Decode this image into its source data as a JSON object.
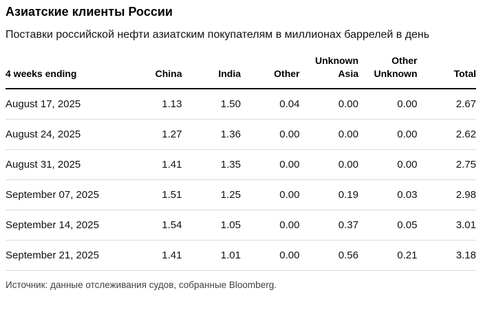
{
  "header": {
    "title": "Азиатские клиенты России",
    "subtitle": "Поставки российской нефти азиатским покупателям в миллионах баррелей в день"
  },
  "table": {
    "columns": [
      "4 weeks ending",
      "China",
      "India",
      "Other",
      "Unknown Asia",
      "Other Unknown",
      "Total"
    ],
    "rows": [
      {
        "date": "August 17, 2025",
        "values": [
          "1.13",
          "1.50",
          "0.04",
          "0.00",
          "0.00",
          "2.67"
        ]
      },
      {
        "date": "August 24, 2025",
        "values": [
          "1.27",
          "1.36",
          "0.00",
          "0.00",
          "0.00",
          "2.62"
        ]
      },
      {
        "date": "August 31, 2025",
        "values": [
          "1.41",
          "1.35",
          "0.00",
          "0.00",
          "0.00",
          "2.75"
        ]
      },
      {
        "date": "September 07, 2025",
        "values": [
          "1.51",
          "1.25",
          "0.00",
          "0.19",
          "0.03",
          "2.98"
        ]
      },
      {
        "date": "September 14, 2025",
        "values": [
          "1.54",
          "1.05",
          "0.00",
          "0.37",
          "0.05",
          "3.01"
        ]
      },
      {
        "date": "September 21, 2025",
        "values": [
          "1.41",
          "1.01",
          "0.00",
          "0.56",
          "0.21",
          "3.18"
        ]
      }
    ]
  },
  "source": {
    "text": "Источник: данные отслеживания судов, собранные Bloomberg."
  },
  "colors": {
    "background": "#ffffff",
    "text": "#111111",
    "header_rule": "#000000",
    "row_separator": "#d9d9d9",
    "source_text": "#3f3f3f"
  },
  "chart_data": {
    "type": "table",
    "title": "Азиатские клиенты России",
    "subtitle": "Поставки российской нефти азиатским покупателям в миллионах баррелей в день",
    "columns": [
      "4 weeks ending",
      "China",
      "India",
      "Other",
      "Unknown Asia",
      "Other Unknown",
      "Total"
    ],
    "rows": [
      [
        "August 17, 2025",
        1.13,
        1.5,
        0.04,
        0.0,
        0.0,
        2.67
      ],
      [
        "August 24, 2025",
        1.27,
        1.36,
        0.0,
        0.0,
        0.0,
        2.62
      ],
      [
        "August 31, 2025",
        1.41,
        1.35,
        0.0,
        0.0,
        0.0,
        2.75
      ],
      [
        "September 07, 2025",
        1.51,
        1.25,
        0.0,
        0.19,
        0.03,
        2.98
      ],
      [
        "September 14, 2025",
        1.54,
        1.05,
        0.0,
        0.37,
        0.05,
        3.01
      ],
      [
        "September 21, 2025",
        1.41,
        1.01,
        0.0,
        0.56,
        0.21,
        3.18
      ]
    ],
    "source": "Источник: данные отслеживания судов, собранные Bloomberg.",
    "units": "million barrels per day"
  }
}
